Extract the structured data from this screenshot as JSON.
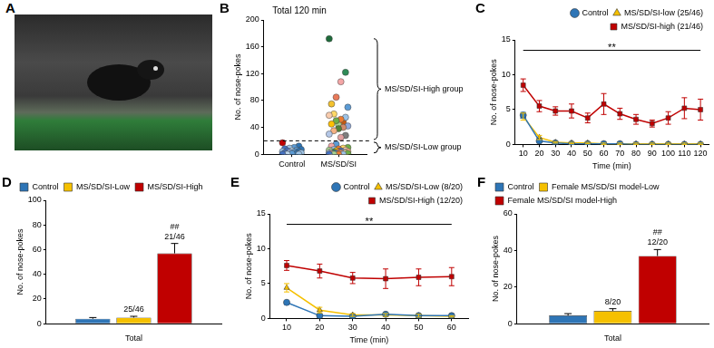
{
  "chart_data": [
    {
      "panel": "A",
      "type": "image"
    },
    {
      "panel": "B",
      "type": "strip",
      "title": "Total 120 min",
      "categories": [
        "Control",
        "MS/SD/SI"
      ],
      "values": [
        [
          17,
          12,
          10,
          9,
          8,
          7,
          6,
          5,
          5,
          4,
          4,
          3,
          3,
          2,
          2,
          1,
          1,
          0,
          0,
          0
        ],
        [
          172,
          122,
          108,
          85,
          75,
          70,
          48,
          44,
          60,
          58,
          55,
          52,
          50,
          45,
          42,
          40,
          38,
          35,
          30,
          28,
          25,
          15,
          12,
          10,
          9,
          8,
          7,
          6,
          6,
          5,
          5,
          4,
          4,
          3,
          3,
          3,
          2,
          2,
          2,
          1,
          1,
          1,
          0,
          0,
          0,
          0
        ]
      ],
      "colors": [
        [
          "#c00000",
          "#2e75b6",
          "#5b9bd5",
          "#9dc3e6",
          "#4472c4",
          "#2e75b6",
          "#5b9bd5",
          "#bdd7ee",
          "#4472c4",
          "#9dc3e6",
          "#2e75b6",
          "#5b9bd5",
          "#8faadc",
          "#4472c4",
          "#9dc3e6",
          "#2e75b6",
          "#5b9bd5",
          "#bdd7ee",
          "#4472c4",
          "#9dc3e6"
        ],
        [
          "#1e6b3a",
          "#2e8b57",
          "#f4a6a6",
          "#e97a5a",
          "#f2c12e",
          "#5b9bd5",
          "#c55a11",
          "#a9d18e",
          "#ffd966",
          "#f8cbad",
          "#9dc3e6",
          "#ed7d31",
          "#70ad47",
          "#ffc000",
          "#8faadc",
          "#d08b6c",
          "#548235",
          "#f4b183",
          "#b4c7e7",
          "#7f7f7f",
          "#e2a0a0",
          "#5b9bd5",
          "#f4a6a6",
          "#70ad47",
          "#ffd966",
          "#ed7d31",
          "#9dc3e6",
          "#a9d18e",
          "#f8cbad",
          "#4472c4",
          "#ffc000",
          "#c5e0b4",
          "#f4b183",
          "#8faadc",
          "#e97a5a",
          "#2e8b57",
          "#b4c7e7",
          "#ffe699",
          "#d08b6c",
          "#5b9bd5",
          "#f4a6a6",
          "#70ad47",
          "#9dc3e6",
          "#ed7d31",
          "#a9d18e",
          "#4472c4"
        ]
      ],
      "ylabel": "No. of nose-pokes",
      "ylim": [
        0,
        200
      ],
      "yticks": [
        0,
        40,
        80,
        120,
        160,
        200
      ],
      "grid": false,
      "threshold": 20,
      "annotations": [
        {
          "text": "MS/SD/SI-High group",
          "y": [
            22,
            172
          ]
        },
        {
          "text": "MS/SD/SI-Low group",
          "y": [
            2,
            18
          ]
        }
      ]
    },
    {
      "panel": "C",
      "type": "line",
      "x": [
        10,
        20,
        30,
        40,
        50,
        60,
        70,
        80,
        90,
        100,
        110,
        120
      ],
      "xlim": [
        5,
        125
      ],
      "xticks": [
        10,
        20,
        30,
        40,
        50,
        60,
        70,
        80,
        90,
        100,
        110,
        120
      ],
      "ylim": [
        0,
        15
      ],
      "yticks": [
        0,
        5,
        10,
        15
      ],
      "xlabel": "Time (min)",
      "ylabel": "No. of nose-pokes",
      "grid": false,
      "legend": "top right",
      "series": [
        {
          "name": "Control",
          "color": "#2e75b6",
          "marker": "circle",
          "values": [
            4.2,
            0.5,
            0.2,
            0.1,
            0.1,
            0.1,
            0.1,
            0,
            0,
            0,
            0,
            0
          ],
          "errors": [
            0.4,
            0.2,
            0.1,
            0.1,
            0.1,
            0.1,
            0.1,
            0,
            0,
            0,
            0,
            0
          ]
        },
        {
          "name": "MS/SD/SI-low (25/46)",
          "color": "#f5c000",
          "marker": "triangle",
          "values": [
            4,
            1,
            0.3,
            0.2,
            0.2,
            0.1,
            0.1,
            0.1,
            0.1,
            0.1,
            0.1,
            0.1
          ],
          "errors": [
            0.5,
            0.3,
            0.1,
            0.1,
            0.1,
            0.1,
            0.1,
            0.1,
            0.1,
            0.1,
            0.1,
            0.1
          ]
        },
        {
          "name": "MS/SD/SI-high (21/46)",
          "color": "#c00000",
          "marker": "square",
          "values": [
            8.5,
            5.5,
            4.8,
            4.8,
            3.8,
            5.8,
            4.4,
            3.6,
            3,
            3.8,
            5.2,
            5
          ],
          "errors": [
            0.9,
            0.8,
            0.6,
            1,
            0.7,
            1.5,
            0.8,
            0.7,
            0.5,
            0.9,
            1.5,
            1.5
          ]
        }
      ],
      "annotations": [
        {
          "text": "**",
          "x": [
            10,
            120
          ],
          "y": 13.5
        }
      ]
    },
    {
      "panel": "D",
      "type": "bar",
      "categories": [
        "Total"
      ],
      "ylim": [
        0,
        100
      ],
      "yticks": [
        0,
        20,
        40,
        60,
        80,
        100
      ],
      "ylabel": "No. of nose-pokes",
      "grid": false,
      "legend": "top left",
      "series": [
        {
          "name": "Control",
          "color": "#2e75b6",
          "values": [
            4
          ],
          "errors": [
            1
          ]
        },
        {
          "name": "MS/SD/SI-Low",
          "color": "#f5c000",
          "values": [
            5
          ],
          "errors": [
            1
          ]
        },
        {
          "name": "MS/SD/SI-High",
          "color": "#c00000",
          "values": [
            57
          ],
          "errors": [
            8
          ]
        }
      ],
      "annotations": [
        {
          "text": "25/46",
          "series": 1,
          "category": 0
        },
        {
          "text": "21/46",
          "series": 2,
          "category": 0
        },
        {
          "text": "##",
          "series": 2,
          "category": 0
        }
      ]
    },
    {
      "panel": "E",
      "type": "line",
      "x": [
        10,
        20,
        30,
        40,
        50,
        60
      ],
      "xlim": [
        5,
        65
      ],
      "xticks": [
        10,
        20,
        30,
        40,
        50,
        60
      ],
      "ylim": [
        0,
        15
      ],
      "yticks": [
        0,
        5,
        10,
        15
      ],
      "xlabel": "Time (min)",
      "ylabel": "No. of nose-pokes",
      "grid": false,
      "legend": "top right",
      "series": [
        {
          "name": "Control",
          "color": "#2e75b6",
          "marker": "circle",
          "values": [
            2.3,
            0.4,
            0.3,
            0.6,
            0.4,
            0.4
          ],
          "errors": [
            0.3,
            0.2,
            0.1,
            0.2,
            0.2,
            0.1
          ]
        },
        {
          "name": "MS/SD/SI-Low (8/20)",
          "color": "#f5c000",
          "marker": "triangle",
          "values": [
            4.4,
            1.2,
            0.5,
            0.5,
            0.4,
            0.3
          ],
          "errors": [
            0.6,
            0.4,
            0.2,
            0.2,
            0.2,
            0.1
          ]
        },
        {
          "name": "MS/SD/SI-High (12/20)",
          "color": "#c00000",
          "marker": "square",
          "values": [
            7.6,
            6.8,
            5.8,
            5.7,
            5.9,
            6
          ],
          "errors": [
            0.7,
            1,
            0.8,
            1.4,
            1.2,
            1.3
          ]
        }
      ],
      "annotations": [
        {
          "text": "**",
          "x": [
            10,
            60
          ],
          "y": 13.5
        }
      ]
    },
    {
      "panel": "F",
      "type": "bar",
      "categories": [
        "Total"
      ],
      "ylim": [
        0,
        60
      ],
      "yticks": [
        0,
        20,
        40,
        60
      ],
      "ylabel": "No. of nose-pokes",
      "grid": false,
      "legend": "top left",
      "series": [
        {
          "name": "Control",
          "color": "#2e75b6",
          "values": [
            4.5
          ],
          "errors": [
            1
          ]
        },
        {
          "name": "Female MS/SD/SI model-Low",
          "color": "#f5c000",
          "values": [
            7
          ],
          "errors": [
            1.2
          ]
        },
        {
          "name": "Female MS/SD/SI model-High",
          "color": "#c00000",
          "values": [
            37
          ],
          "errors": [
            3.5
          ]
        }
      ],
      "annotations": [
        {
          "text": "8/20",
          "series": 1,
          "category": 0
        },
        {
          "text": "12/20",
          "series": 2,
          "category": 0
        },
        {
          "text": "##",
          "series": 2,
          "category": 0
        }
      ]
    }
  ]
}
